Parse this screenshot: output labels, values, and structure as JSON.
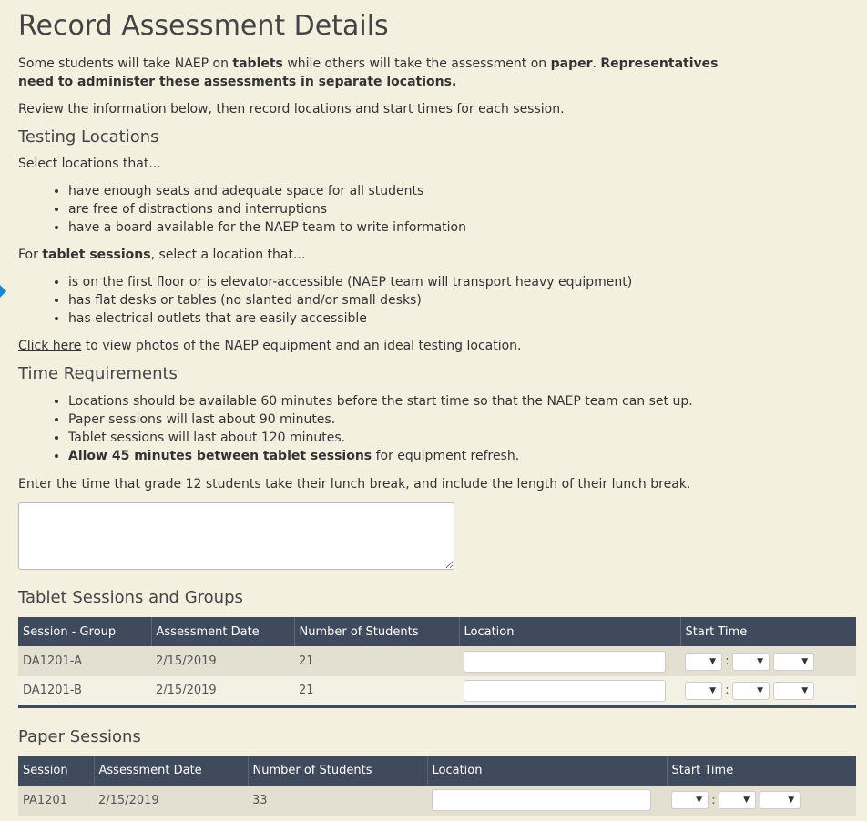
{
  "title": "Record Assessment Details",
  "intro": {
    "s1": "Some students will take NAEP on ",
    "b1": "tablets",
    "s2": " while others will take the assessment on ",
    "b2": "paper",
    "s3": ". ",
    "b3": "Representatives need to administer these assessments in separate locations."
  },
  "review": "Review the information below, then record locations and start times for each session.",
  "testing": {
    "heading": "Testing Locations",
    "select_intro": "Select locations that...",
    "general": [
      "have enough seats and adequate space for all students",
      "are free of distractions and interruptions",
      "have a board available for the NAEP team to write information"
    ],
    "tablet_intro": {
      "s1": "For ",
      "b1": "tablet sessions",
      "s2": ", select a location that..."
    },
    "tablet": [
      "is on the first floor or is elevator-accessible (NAEP team will transport heavy equipment)",
      "has flat desks or tables (no slanted and/or small desks)",
      "has electrical outlets that are easily accessible"
    ],
    "link": "Click here",
    "link_rest": " to view photos of the NAEP equipment and an ideal testing location."
  },
  "time": {
    "heading": "Time Requirements",
    "items": [
      "Locations should be available 60 minutes before the start time so that the NAEP team can set up.",
      "Paper sessions will last about 90 minutes.",
      "Tablet sessions will last about 120 minutes."
    ],
    "bold_item": "Allow 45 minutes between tablet sessions",
    "bold_rest": " for equipment refresh.",
    "lunch_prompt": "Enter the time that grade 12 students take their lunch break, and include the length of their lunch break.",
    "lunch_value": ""
  },
  "tablet_table": {
    "heading": "Tablet Sessions and Groups",
    "columns": [
      "Session - Group",
      "Assessment Date",
      "Number of Students",
      "Location",
      "Start Time"
    ],
    "rows": [
      {
        "session": "DA1201-A",
        "date": "2/15/2019",
        "students": "21",
        "location": ""
      },
      {
        "session": "DA1201-B",
        "date": "2/15/2019",
        "students": "21",
        "location": ""
      }
    ]
  },
  "paper_table": {
    "heading": "Paper Sessions",
    "columns": [
      "Session",
      "Assessment Date",
      "Number of Students",
      "Location",
      "Start Time"
    ],
    "rows": [
      {
        "session": "PA1201",
        "date": "2/15/2019",
        "students": "33",
        "location": ""
      }
    ]
  },
  "time_sep": ":",
  "dropdown_arrow": "▼",
  "colors": {
    "header": "#3f4a5c",
    "background": "#f4f0e0",
    "marker": "#1a8ad0"
  }
}
